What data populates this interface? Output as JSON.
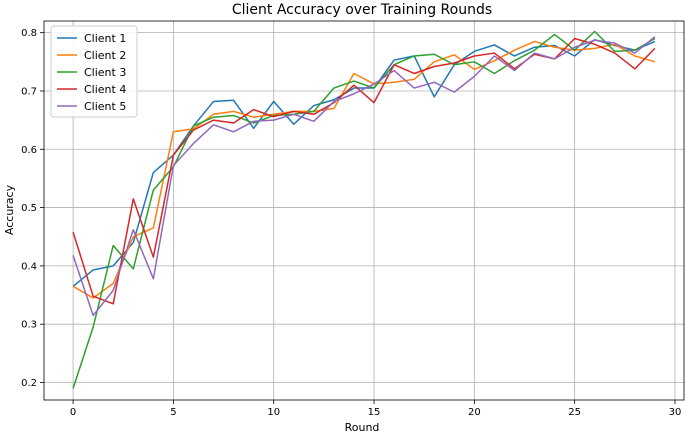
{
  "chart_data": {
    "type": "line",
    "title": "Client Accuracy over Training Rounds",
    "xlabel": "Round",
    "ylabel": "Accuracy",
    "xlim": [
      -1.45,
      30.45
    ],
    "ylim": [
      0.17,
      0.82
    ],
    "xticks": [
      0,
      5,
      10,
      15,
      20,
      25,
      30
    ],
    "yticks": [
      0.2,
      0.3,
      0.4,
      0.5,
      0.6,
      0.7,
      0.8
    ],
    "grid": true,
    "legend_position": "upper-left",
    "x": [
      0,
      1,
      2,
      3,
      4,
      5,
      6,
      7,
      8,
      9,
      10,
      11,
      12,
      13,
      14,
      15,
      16,
      17,
      18,
      19,
      20,
      21,
      22,
      23,
      24,
      25,
      26,
      27,
      28,
      29
    ],
    "series": [
      {
        "name": "Client 1",
        "color": "#1f77b4",
        "values": [
          0.365,
          0.393,
          0.4,
          0.44,
          0.56,
          0.59,
          0.64,
          0.682,
          0.684,
          0.636,
          0.682,
          0.643,
          0.675,
          0.685,
          0.705,
          0.705,
          0.753,
          0.76,
          0.69,
          0.745,
          0.768,
          0.779,
          0.76,
          0.775,
          0.778,
          0.76,
          0.788,
          0.778,
          0.77,
          0.785
        ]
      },
      {
        "name": "Client 2",
        "color": "#ff7f0e",
        "values": [
          0.365,
          0.345,
          0.37,
          0.45,
          0.465,
          0.63,
          0.635,
          0.66,
          0.665,
          0.655,
          0.66,
          0.665,
          0.665,
          0.67,
          0.73,
          0.712,
          0.715,
          0.72,
          0.75,
          0.762,
          0.737,
          0.752,
          0.77,
          0.785,
          0.775,
          0.77,
          0.773,
          0.78,
          0.76,
          0.75
        ]
      },
      {
        "name": "Client 3",
        "color": "#2ca02c",
        "values": [
          0.19,
          0.295,
          0.435,
          0.395,
          0.53,
          0.57,
          0.64,
          0.655,
          0.658,
          0.645,
          0.658,
          0.66,
          0.665,
          0.705,
          0.717,
          0.705,
          0.745,
          0.76,
          0.763,
          0.745,
          0.75,
          0.73,
          0.752,
          0.77,
          0.797,
          0.77,
          0.802,
          0.768,
          0.77,
          0.79
        ]
      },
      {
        "name": "Client 4",
        "color": "#d62728",
        "values": [
          0.458,
          0.348,
          0.335,
          0.515,
          0.415,
          0.59,
          0.633,
          0.65,
          0.645,
          0.668,
          0.656,
          0.665,
          0.66,
          0.68,
          0.71,
          0.68,
          0.745,
          0.73,
          0.742,
          0.748,
          0.76,
          0.765,
          0.738,
          0.763,
          0.755,
          0.79,
          0.78,
          0.765,
          0.738,
          0.773
        ]
      },
      {
        "name": "Client 5",
        "color": "#9467bd",
        "values": [
          0.418,
          0.315,
          0.358,
          0.462,
          0.378,
          0.572,
          0.61,
          0.642,
          0.63,
          0.648,
          0.65,
          0.66,
          0.648,
          0.682,
          0.695,
          0.712,
          0.735,
          0.705,
          0.715,
          0.698,
          0.725,
          0.76,
          0.735,
          0.765,
          0.755,
          0.775,
          0.787,
          0.782,
          0.765,
          0.793
        ]
      }
    ]
  }
}
